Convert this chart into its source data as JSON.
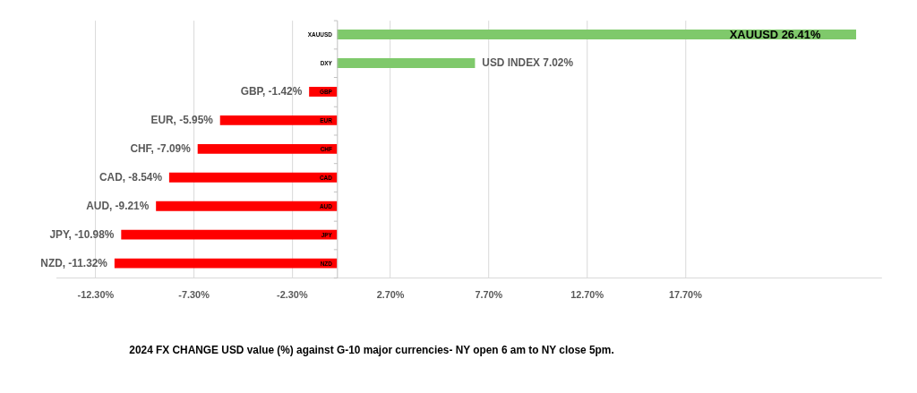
{
  "chart_data": {
    "type": "bar",
    "orientation": "horizontal",
    "title": "2024 FX CHANGE USD value (%)  against  G-10 major currencies- NY open 6 am to NY close 5pm.",
    "categories": [
      "XAUUSD",
      "DXY",
      "GBP",
      "EUR",
      "CHF",
      "CAD",
      "AUD",
      "JPY",
      "NZD"
    ],
    "values": [
      26.41,
      7.02,
      -1.42,
      -5.95,
      -7.09,
      -8.54,
      -9.21,
      -10.98,
      -11.32
    ],
    "colors": [
      "#7fc96b",
      "#7fc96b",
      "#ff0000",
      "#ff0000",
      "#ff0000",
      "#ff0000",
      "#ff0000",
      "#ff0000",
      "#ff0000"
    ],
    "value_labels": [
      "XAUUSD 26.41%",
      "USD INDEX 7.02%",
      "GBP, -1.42%",
      "EUR, -5.95%",
      "CHF, -7.09%",
      "CAD, -8.54%",
      "AUD, -9.21%",
      "JPY, -10.98%",
      "NZD, -11.32%"
    ],
    "xlim": [
      -14.3,
      27.7
    ],
    "xticks": [
      {
        "value": -12.3,
        "label": "-12.30%"
      },
      {
        "value": -7.3,
        "label": "-7.30%"
      },
      {
        "value": -2.3,
        "label": "-2.30%"
      },
      {
        "value": 2.7,
        "label": "2.70%"
      },
      {
        "value": 7.7,
        "label": "7.70%"
      },
      {
        "value": 12.7,
        "label": "12.70%"
      },
      {
        "value": 17.7,
        "label": "17.70%"
      }
    ],
    "grid": "x"
  }
}
